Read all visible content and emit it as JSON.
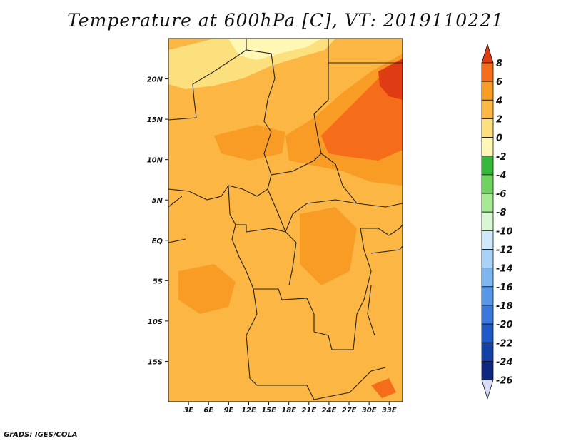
{
  "title": "Temperature at 600hPa [C], VT: 2019110221",
  "credit": "GrADS: IGES/COLA",
  "map": {
    "lon_range": [
      0,
      35
    ],
    "lat_range": [
      -20,
      25
    ],
    "lon_ticks": [
      {
        "lon": 3,
        "label": "3E"
      },
      {
        "lon": 6,
        "label": "6E"
      },
      {
        "lon": 9,
        "label": "9E"
      },
      {
        "lon": 12,
        "label": "12E"
      },
      {
        "lon": 15,
        "label": "15E"
      },
      {
        "lon": 18,
        "label": "18E"
      },
      {
        "lon": 21,
        "label": "21E"
      },
      {
        "lon": 24,
        "label": "24E"
      },
      {
        "lon": 27,
        "label": "27E"
      },
      {
        "lon": 30,
        "label": "30E"
      },
      {
        "lon": 33,
        "label": "33E"
      }
    ],
    "lat_ticks": [
      {
        "lat": 20,
        "label": "20N"
      },
      {
        "lat": 15,
        "label": "15N"
      },
      {
        "lat": 10,
        "label": "10N"
      },
      {
        "lat": 5,
        "label": "5N"
      },
      {
        "lat": 0,
        "label": "EQ"
      },
      {
        "lat": -5,
        "label": "5S"
      },
      {
        "lat": -10,
        "label": "10S"
      },
      {
        "lat": -15,
        "label": "15S"
      }
    ],
    "background_color": "#fbb643",
    "border_color": "#222222"
  },
  "colorbar": {
    "levels": [
      "8",
      "6",
      "4",
      "2",
      "0",
      "-2",
      "-4",
      "-6",
      "-8",
      "-10",
      "-12",
      "-14",
      "-16",
      "-18",
      "-20",
      "-22",
      "-24",
      "-26"
    ],
    "colors": [
      "#e03c14",
      "#f56c1a",
      "#f99c26",
      "#fbb643",
      "#fde07e",
      "#fff8b4",
      "#35b83a",
      "#6fd35f",
      "#a6ea95",
      "#d8f7d2",
      "#cfe9fb",
      "#a9d2f6",
      "#7eb6f1",
      "#5897e8",
      "#3a78db",
      "#1f59c8",
      "#1341a6",
      "#0e2882",
      "#0a1060"
    ],
    "max_arrow_color": "#e03c14",
    "min_arrow_color": "#d6dcf7"
  }
}
